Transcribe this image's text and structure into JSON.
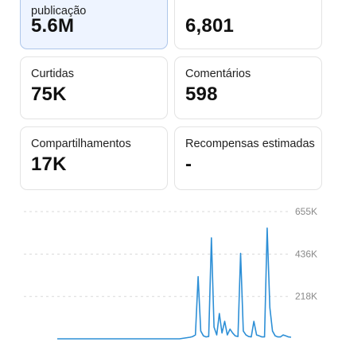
{
  "cards": [
    {
      "label": "publicação",
      "value": "5.6M",
      "selected": true
    },
    {
      "label": "",
      "value": "6,801",
      "selected": false
    },
    {
      "label": "Curtidas",
      "value": "75K",
      "selected": false
    },
    {
      "label": "Comentários",
      "value": "598",
      "selected": false
    },
    {
      "label": "Compartilhamentos",
      "value": "17K",
      "selected": false
    },
    {
      "label": "Recompensas estimadas",
      "value": "-",
      "selected": false
    }
  ],
  "colors": {
    "line": "#2d8fd6",
    "selected_card_bg": "#eef4ff",
    "selected_card_border": "#aec6ea",
    "card_border": "#e3e3e3",
    "grid": "#d9d9d9"
  },
  "chart_data": {
    "type": "line",
    "y_ticks": [
      "655K",
      "436K",
      "218K"
    ],
    "y_tick_values": [
      655000,
      436000,
      218000
    ],
    "ylim": [
      0,
      655000
    ],
    "grid": true,
    "series": [
      {
        "values": [
          0,
          0,
          0,
          0,
          0,
          0,
          0,
          0,
          0,
          0,
          0,
          0,
          0,
          0,
          0,
          0,
          0,
          0,
          0,
          0,
          0,
          0,
          0,
          0,
          0,
          0,
          0,
          0,
          0,
          0,
          0,
          0,
          0,
          0,
          0,
          0,
          0,
          0,
          0,
          0,
          0,
          0,
          0,
          0,
          0,
          0,
          0,
          2000,
          4000,
          6000,
          8000,
          12000,
          20000,
          320000,
          40000,
          15000,
          10000,
          12000,
          520000,
          60000,
          20000,
          130000,
          30000,
          90000,
          20000,
          50000,
          30000,
          15000,
          12000,
          440000,
          40000,
          20000,
          12000,
          10000,
          90000,
          20000,
          15000,
          10000,
          10000,
          570000,
          160000,
          40000,
          15000,
          10000,
          10000,
          20000,
          15000,
          10000,
          8000
        ]
      }
    ]
  }
}
